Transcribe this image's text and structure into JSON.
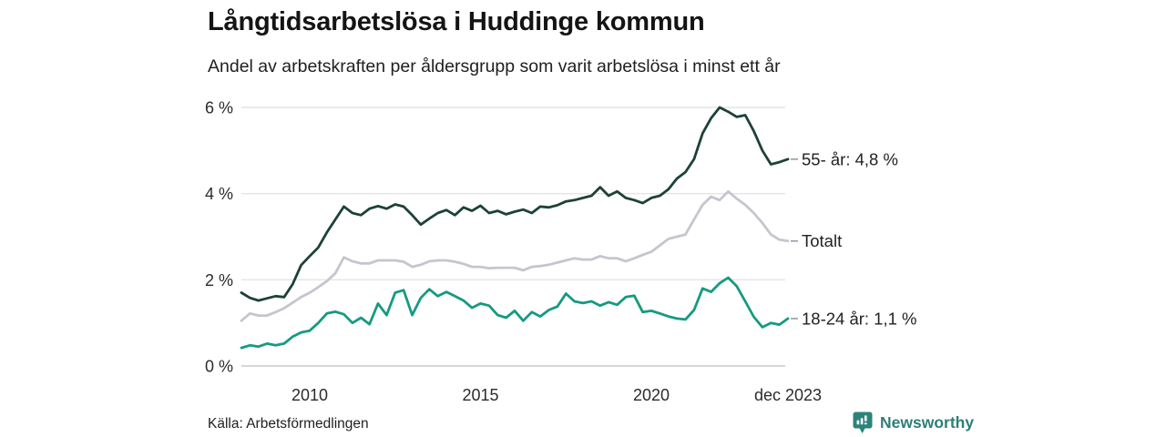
{
  "header": {
    "title": "Långtidsarbetslösa i Huddinge kommun",
    "subtitle": "Andel av arbetskraften per åldersgrupp som varit arbetslösa i minst ett år"
  },
  "footer": {
    "source": "Källa: Arbetsförmedlingen",
    "brand": "Newsworthy"
  },
  "colors": {
    "series_55": "#1d4139",
    "series_total": "#c6c5cf",
    "series_1824": "#169a80",
    "grid": "#e4e4e8",
    "zero_line": "#c9c9cf",
    "tick_text": "#2b2b2b",
    "end_label_text": "#222222",
    "end_dash": "#9a9aa2",
    "brand_teal": "#2d7f76"
  },
  "chart_data": {
    "type": "line",
    "title": "Långtidsarbetslösa i Huddinge kommun",
    "subtitle": "Andel av arbetskraften per åldersgrupp som varit arbetslösa i minst ett år",
    "unit": "%",
    "x_start": 2008.0,
    "x_step": 0.25,
    "x_end": 2024.0,
    "ylim": [
      0,
      6.3
    ],
    "grid": "horizontal",
    "legend_position": "right-end-labels",
    "xticks": [
      {
        "year": 2010,
        "label": "2010"
      },
      {
        "year": 2015,
        "label": "2015"
      },
      {
        "year": 2020,
        "label": "2020"
      },
      {
        "year": 2024,
        "label": "dec 2023"
      }
    ],
    "yticks": [
      {
        "value": 0,
        "label": "0 %"
      },
      {
        "value": 2,
        "label": "2 %"
      },
      {
        "value": 4,
        "label": "4 %"
      },
      {
        "value": 6,
        "label": "6 %"
      }
    ],
    "series": [
      {
        "name": "55- år",
        "end_label": "55- år: 4,8 %",
        "last_value": 4.8,
        "color": "#1d4139",
        "values": [
          1.7,
          1.58,
          1.52,
          1.57,
          1.62,
          1.6,
          1.9,
          2.34,
          2.55,
          2.75,
          3.1,
          3.4,
          3.7,
          3.55,
          3.5,
          3.65,
          3.71,
          3.65,
          3.75,
          3.7,
          3.5,
          3.28,
          3.42,
          3.55,
          3.62,
          3.5,
          3.68,
          3.6,
          3.72,
          3.55,
          3.6,
          3.52,
          3.58,
          3.63,
          3.55,
          3.7,
          3.68,
          3.73,
          3.82,
          3.85,
          3.9,
          3.95,
          4.15,
          3.95,
          4.05,
          3.9,
          3.85,
          3.78,
          3.9,
          3.95,
          4.1,
          4.35,
          4.5,
          4.8,
          5.4,
          5.75,
          6.0,
          5.9,
          5.78,
          5.82,
          5.45,
          5.0,
          4.68,
          4.73,
          4.8
        ]
      },
      {
        "name": "Totalt",
        "end_label": "Totalt",
        "last_value": 2.9,
        "color": "#c6c5cf",
        "values": [
          1.05,
          1.22,
          1.17,
          1.17,
          1.25,
          1.34,
          1.47,
          1.6,
          1.7,
          1.83,
          1.97,
          2.15,
          2.52,
          2.43,
          2.38,
          2.38,
          2.45,
          2.45,
          2.45,
          2.42,
          2.3,
          2.35,
          2.43,
          2.45,
          2.45,
          2.42,
          2.37,
          2.3,
          2.3,
          2.27,
          2.28,
          2.28,
          2.28,
          2.22,
          2.3,
          2.32,
          2.35,
          2.4,
          2.45,
          2.5,
          2.47,
          2.47,
          2.55,
          2.5,
          2.5,
          2.43,
          2.5,
          2.58,
          2.65,
          2.8,
          2.95,
          3.0,
          3.05,
          3.4,
          3.74,
          3.93,
          3.85,
          4.05,
          3.88,
          3.74,
          3.55,
          3.32,
          3.05,
          2.93,
          2.9
        ]
      },
      {
        "name": "18-24 år",
        "end_label": "18-24 år: 1,1 %",
        "last_value": 1.1,
        "color": "#169a80",
        "values": [
          0.42,
          0.48,
          0.45,
          0.52,
          0.48,
          0.52,
          0.68,
          0.78,
          0.82,
          1.0,
          1.22,
          1.26,
          1.2,
          1.0,
          1.12,
          0.97,
          1.45,
          1.18,
          1.7,
          1.76,
          1.18,
          1.58,
          1.78,
          1.62,
          1.72,
          1.62,
          1.52,
          1.35,
          1.45,
          1.4,
          1.18,
          1.12,
          1.28,
          1.05,
          1.25,
          1.15,
          1.3,
          1.38,
          1.68,
          1.5,
          1.46,
          1.5,
          1.4,
          1.48,
          1.42,
          1.6,
          1.63,
          1.25,
          1.28,
          1.22,
          1.15,
          1.1,
          1.08,
          1.3,
          1.8,
          1.72,
          1.92,
          2.05,
          1.85,
          1.5,
          1.14,
          0.9,
          1.0,
          0.96,
          1.1
        ]
      }
    ]
  }
}
